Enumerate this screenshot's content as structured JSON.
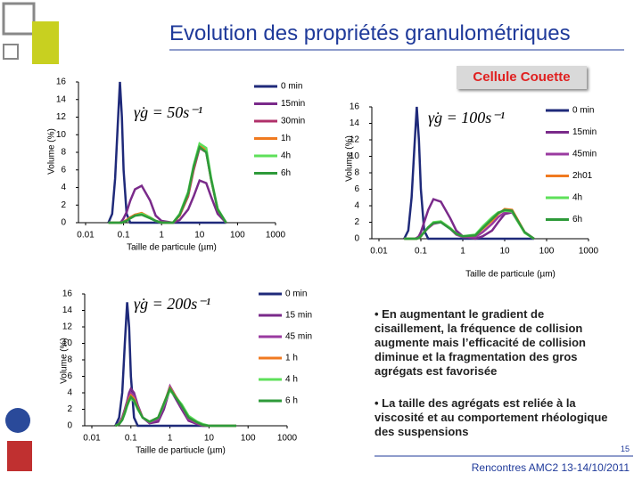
{
  "header": {
    "title": "Evolution des propriétés granulométriques",
    "subtitle": "Cellule Couette"
  },
  "chart_data": [
    {
      "type": "line",
      "annotation": "γ̇g = 50s⁻¹",
      "xlabel": "Taille de particule (µm)",
      "ylabel": "Volume (%)",
      "xlog": true,
      "xlim": [
        0.01,
        1000
      ],
      "xticks": [
        0.01,
        0.1,
        1,
        10,
        100,
        1000
      ],
      "ylim": [
        0,
        16
      ],
      "yticks": [
        0,
        2,
        4,
        6,
        8,
        10,
        12,
        14,
        16
      ],
      "x": [
        0.04,
        0.05,
        0.06,
        0.07,
        0.08,
        0.09,
        0.1,
        0.12,
        0.15,
        0.2,
        0.3,
        0.5,
        0.7,
        1,
        2,
        3,
        5,
        7,
        10,
        15,
        20,
        30,
        50
      ],
      "series": [
        {
          "name": "0 min",
          "color": "#1f2a7a",
          "values": [
            0,
            1,
            5,
            11,
            16,
            12,
            6,
            1,
            0,
            0,
            0,
            0,
            0,
            0,
            0,
            0,
            0,
            0,
            0,
            0,
            0,
            0,
            0
          ]
        },
        {
          "name": "15min",
          "color": "#7a2a8a",
          "values": [
            0,
            0,
            0,
            0,
            0,
            0.2,
            0.5,
            1.2,
            2.5,
            3.8,
            4.2,
            2.5,
            0.8,
            0.2,
            0,
            0.3,
            1.5,
            3,
            4.8,
            4.5,
            3,
            1,
            0
          ]
        },
        {
          "name": "30min",
          "color": "#b0306a",
          "values": [
            0,
            0,
            0,
            0,
            0,
            0,
            0.1,
            0.3,
            0.6,
            0.9,
            1,
            0.6,
            0.2,
            0,
            0,
            0.8,
            3,
            6,
            8.5,
            8,
            5,
            1.5,
            0
          ]
        },
        {
          "name": "1h",
          "color": "#f07a20",
          "values": [
            0,
            0,
            0,
            0,
            0,
            0,
            0.1,
            0.3,
            0.6,
            0.9,
            1.1,
            0.6,
            0.2,
            0,
            0,
            0.8,
            3.2,
            6.3,
            8.8,
            8.2,
            5,
            1.5,
            0
          ]
        },
        {
          "name": "4h",
          "color": "#5ee05a",
          "values": [
            0,
            0,
            0,
            0,
            0,
            0,
            0.1,
            0.2,
            0.5,
            0.8,
            1,
            0.6,
            0.2,
            0,
            0,
            1,
            3.5,
            6.5,
            9,
            8.5,
            5.2,
            1.6,
            0
          ]
        },
        {
          "name": "6h",
          "color": "#2e9a3a",
          "values": [
            0,
            0,
            0,
            0,
            0,
            0,
            0.1,
            0.2,
            0.5,
            0.8,
            0.9,
            0.5,
            0.2,
            0,
            0,
            0.9,
            3.3,
            6.4,
            8.6,
            8,
            5,
            1.5,
            0
          ]
        }
      ]
    },
    {
      "type": "line",
      "annotation": "γ̇g = 100s⁻¹",
      "xlabel": "Taille de particule (µm)",
      "ylabel": "Volume (%)",
      "xlog": true,
      "xlim": [
        0.01,
        1000
      ],
      "xticks": [
        0.01,
        0.1,
        1,
        10,
        100,
        1000
      ],
      "ylim": [
        0,
        16
      ],
      "yticks": [
        0,
        2,
        4,
        6,
        8,
        10,
        12,
        14,
        16
      ],
      "x": [
        0.04,
        0.05,
        0.06,
        0.07,
        0.08,
        0.09,
        0.1,
        0.12,
        0.15,
        0.2,
        0.3,
        0.5,
        0.7,
        1,
        2,
        3,
        5,
        7,
        10,
        15,
        20,
        30,
        50
      ],
      "series": [
        {
          "name": "0 min",
          "color": "#1f2a7a",
          "values": [
            0,
            1,
            5,
            11,
            16,
            12,
            6,
            1,
            0,
            0,
            0,
            0,
            0,
            0,
            0,
            0,
            0,
            0,
            0,
            0,
            0,
            0,
            0
          ]
        },
        {
          "name": "15min",
          "color": "#7a2a8a",
          "values": [
            0,
            0,
            0,
            0,
            0.1,
            0.3,
            0.8,
            2,
            3.5,
            4.8,
            4.5,
            2.5,
            1,
            0.3,
            0,
            0.3,
            1,
            2,
            3,
            3.2,
            2.2,
            0.8,
            0
          ]
        },
        {
          "name": "45min",
          "color": "#9a3aa0",
          "values": [
            0,
            0,
            0,
            0,
            0,
            0.1,
            0.3,
            0.8,
            1.3,
            1.8,
            2,
            1.2,
            0.5,
            0.2,
            0.2,
            0.8,
            1.8,
            2.6,
            3.2,
            3.3,
            2.3,
            0.8,
            0
          ]
        },
        {
          "name": "2h01",
          "color": "#f07a20",
          "values": [
            0,
            0,
            0,
            0,
            0,
            0.1,
            0.3,
            0.8,
            1.4,
            1.9,
            2.1,
            1.3,
            0.6,
            0.3,
            0.4,
            1.2,
            2.2,
            3,
            3.6,
            3.5,
            2.4,
            0.8,
            0
          ]
        },
        {
          "name": "4h",
          "color": "#5ee05a",
          "values": [
            0,
            0,
            0,
            0,
            0,
            0.1,
            0.3,
            0.8,
            1.4,
            2,
            2.1,
            1.3,
            0.6,
            0.3,
            0.5,
            1.5,
            2.6,
            3.2,
            3.4,
            3.3,
            2.2,
            0.7,
            0
          ]
        },
        {
          "name": "6h",
          "color": "#2e9a3a",
          "values": [
            0,
            0,
            0,
            0,
            0,
            0.1,
            0.3,
            0.8,
            1.4,
            1.9,
            2,
            1.2,
            0.6,
            0.3,
            0.4,
            1.3,
            2.4,
            3.1,
            3.5,
            3.4,
            2.3,
            0.8,
            0
          ]
        }
      ]
    },
    {
      "type": "line",
      "annotation": "γ̇g = 200s⁻¹",
      "xlabel": "Taille de partiucle (µm)",
      "ylabel": "Volume (%)",
      "xlog": true,
      "xlim": [
        0.01,
        1000
      ],
      "xticks": [
        0.01,
        0.1,
        1,
        10,
        100,
        1000
      ],
      "ylim": [
        0,
        16
      ],
      "yticks": [
        0,
        2,
        4,
        6,
        8,
        10,
        12,
        14,
        16
      ],
      "x": [
        0.04,
        0.05,
        0.06,
        0.07,
        0.08,
        0.09,
        0.1,
        0.12,
        0.15,
        0.2,
        0.3,
        0.5,
        0.7,
        1,
        2,
        3,
        5,
        7,
        10,
        15,
        20,
        30,
        50
      ],
      "series": [
        {
          "name": "0 min",
          "color": "#1f2a7a",
          "values": [
            0,
            1,
            4,
            10,
            15,
            12,
            6,
            1,
            0,
            0,
            0,
            0,
            0,
            0,
            0,
            0,
            0,
            0,
            0,
            0,
            0,
            0,
            0
          ]
        },
        {
          "name": "15 min",
          "color": "#7a2a8a",
          "values": [
            0,
            0.3,
            1,
            2,
            3,
            4,
            4.5,
            4,
            2.5,
            1,
            0.3,
            0.5,
            2,
            4.5,
            2,
            0.6,
            0.2,
            0,
            0,
            0,
            0,
            0,
            0
          ]
        },
        {
          "name": "45 min",
          "color": "#9a3aa0",
          "values": [
            0,
            0.2,
            0.8,
            1.8,
            2.8,
            3.6,
            4,
            3.6,
            2.3,
            1,
            0.4,
            0.8,
            2.5,
            4.8,
            2.3,
            0.8,
            0.3,
            0.1,
            0,
            0,
            0,
            0,
            0
          ]
        },
        {
          "name": "1 h",
          "color": "#f07a20",
          "values": [
            0,
            0.2,
            0.8,
            1.7,
            2.6,
            3.3,
            3.7,
            3.3,
            2.2,
            1,
            0.5,
            1,
            2.7,
            4.6,
            2.5,
            1,
            0.4,
            0.1,
            0,
            0,
            0,
            0,
            0
          ]
        },
        {
          "name": "4 h",
          "color": "#5ee05a",
          "values": [
            0,
            0.2,
            0.7,
            1.5,
            2.4,
            3,
            3.3,
            3,
            2,
            1,
            0.5,
            1,
            2.6,
            4.3,
            2.6,
            1.2,
            0.5,
            0.2,
            0,
            0,
            0,
            0,
            0
          ]
        },
        {
          "name": "6 h",
          "color": "#2e9a3a",
          "values": [
            0,
            0.2,
            0.7,
            1.6,
            2.5,
            3.1,
            3.5,
            3.1,
            2.1,
            1,
            0.5,
            1,
            2.7,
            4.5,
            2.4,
            1,
            0.4,
            0.1,
            0,
            0,
            0,
            0,
            0
          ]
        }
      ]
    }
  ],
  "bullets": [
    "• En augmentant le gradient de cisaillement, la fréquence de collision augmente mais l’efficacité de collision diminue et la fragmentation des gros agrégats est favorisée",
    "• La taille des agrégats est reliée à la viscosité et au comportement rhéologique des suspensions"
  ],
  "footer": {
    "page": "15",
    "text": "Rencontres AMC2 13-14/10/2011"
  }
}
